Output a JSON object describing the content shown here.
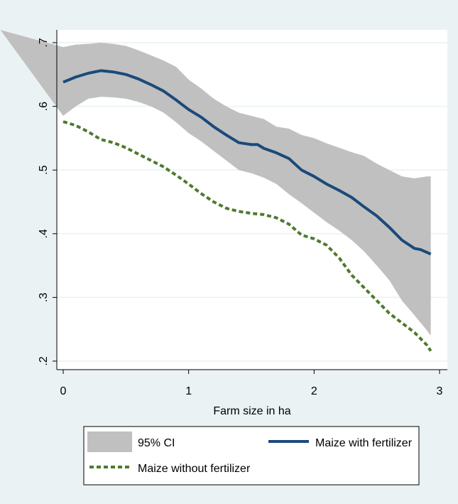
{
  "chart_data": {
    "type": "line",
    "title": "",
    "xlabel": "Farm size in ha",
    "ylabel": "",
    "xlim": [
      0,
      3
    ],
    "ylim": [
      0.2,
      0.7
    ],
    "x_ticks": [
      0,
      1,
      2,
      3
    ],
    "x_tick_labels": [
      "0",
      "1",
      "2",
      "3"
    ],
    "y_ticks": [
      0.2,
      0.3,
      0.4,
      0.5,
      0.6,
      0.7
    ],
    "y_tick_labels": [
      ".2",
      ".3",
      ".4",
      ".5",
      ".6",
      ".7"
    ],
    "grid": "horizontal",
    "legend_position": "bottom",
    "ci_band": {
      "name": "95% CI",
      "color": "#c0c0c0",
      "x": [
        -0.5,
        0.0,
        0.1,
        0.2,
        0.3,
        0.4,
        0.5,
        0.6,
        0.7,
        0.8,
        0.9,
        1.0,
        1.1,
        1.2,
        1.3,
        1.4,
        1.5,
        1.6,
        1.7,
        1.8,
        1.9,
        2.0,
        2.1,
        2.2,
        2.3,
        2.4,
        2.5,
        2.6,
        2.7,
        2.8,
        2.9,
        2.93
      ],
      "lower": [
        0.72,
        0.585,
        0.6,
        0.612,
        0.615,
        0.614,
        0.612,
        0.607,
        0.6,
        0.59,
        0.575,
        0.558,
        0.545,
        0.53,
        0.515,
        0.5,
        0.495,
        0.488,
        0.478,
        0.462,
        0.448,
        0.433,
        0.418,
        0.405,
        0.39,
        0.372,
        0.35,
        0.327,
        0.295,
        0.272,
        0.248,
        0.24
      ],
      "upper": [
        0.72,
        0.693,
        0.697,
        0.698,
        0.7,
        0.698,
        0.695,
        0.688,
        0.68,
        0.672,
        0.662,
        0.642,
        0.628,
        0.612,
        0.6,
        0.59,
        0.585,
        0.58,
        0.568,
        0.565,
        0.555,
        0.55,
        0.542,
        0.535,
        0.528,
        0.522,
        0.51,
        0.5,
        0.49,
        0.487,
        0.49,
        0.49
      ]
    },
    "series": [
      {
        "name": "Maize with fertilizer",
        "color": "#1a4a7a",
        "style": "solid",
        "x": [
          0.0,
          0.1,
          0.2,
          0.3,
          0.4,
          0.5,
          0.6,
          0.7,
          0.8,
          0.9,
          1.0,
          1.1,
          1.2,
          1.3,
          1.4,
          1.5,
          1.55,
          1.6,
          1.7,
          1.8,
          1.9,
          2.0,
          2.1,
          2.2,
          2.3,
          2.4,
          2.5,
          2.6,
          2.7,
          2.8,
          2.85,
          2.93
        ],
        "values": [
          0.638,
          0.646,
          0.652,
          0.656,
          0.654,
          0.65,
          0.643,
          0.634,
          0.624,
          0.61,
          0.595,
          0.583,
          0.568,
          0.555,
          0.543,
          0.54,
          0.54,
          0.534,
          0.527,
          0.518,
          0.5,
          0.49,
          0.478,
          0.468,
          0.457,
          0.442,
          0.428,
          0.41,
          0.39,
          0.377,
          0.375,
          0.368
        ]
      },
      {
        "name": "Maize without fertilizer",
        "color": "#4e7a2e",
        "style": "dashed",
        "x": [
          0.0,
          0.1,
          0.2,
          0.3,
          0.4,
          0.5,
          0.6,
          0.7,
          0.8,
          0.9,
          1.0,
          1.1,
          1.2,
          1.3,
          1.4,
          1.5,
          1.6,
          1.7,
          1.8,
          1.9,
          2.0,
          2.1,
          2.2,
          2.3,
          2.4,
          2.5,
          2.6,
          2.7,
          2.8,
          2.9,
          2.93
        ],
        "values": [
          0.576,
          0.57,
          0.56,
          0.548,
          0.543,
          0.535,
          0.525,
          0.515,
          0.505,
          0.492,
          0.478,
          0.463,
          0.45,
          0.44,
          0.435,
          0.432,
          0.43,
          0.425,
          0.415,
          0.398,
          0.392,
          0.382,
          0.362,
          0.335,
          0.315,
          0.295,
          0.275,
          0.26,
          0.245,
          0.225,
          0.216
        ]
      }
    ]
  }
}
